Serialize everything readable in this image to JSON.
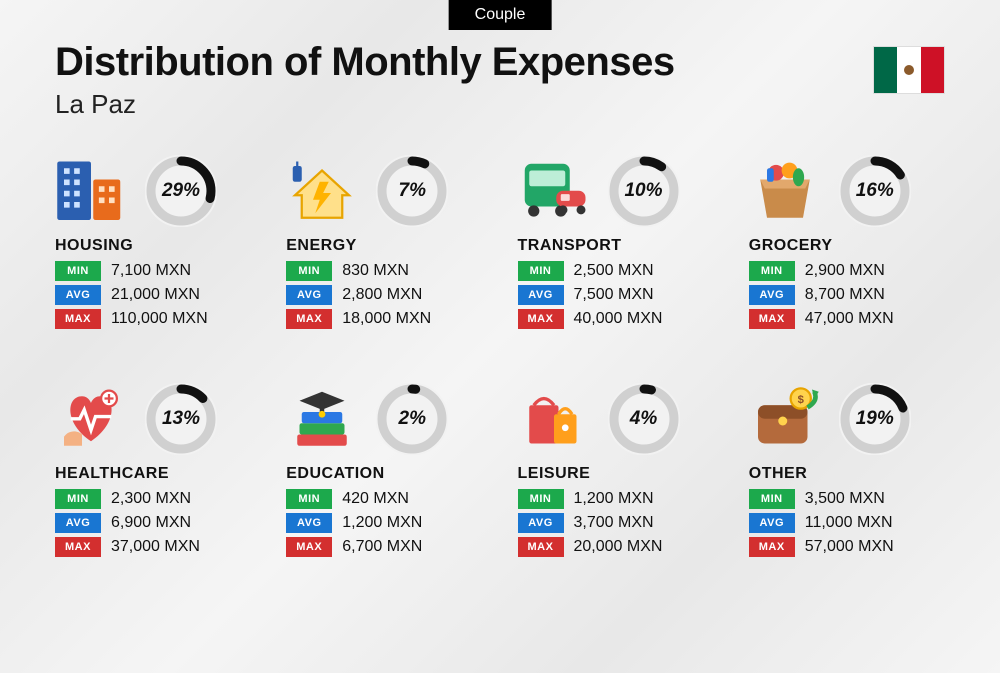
{
  "badge": "Couple",
  "title": "Distribution of Monthly Expenses",
  "subtitle": "La Paz",
  "flag": {
    "left": "#006847",
    "mid": "#ffffff",
    "right": "#ce1126"
  },
  "labels": {
    "min": "MIN",
    "avg": "AVG",
    "max": "MAX"
  },
  "donut": {
    "track_color": "#d0d0d0",
    "fill_color": "#111111",
    "bg": "#f2f2f2",
    "stroke_width": 9,
    "radius": 30
  },
  "currency_suffix": " MXN",
  "categories": [
    {
      "key": "housing",
      "name": "HOUSING",
      "pct": 29,
      "min": "7,100",
      "avg": "21,000",
      "max": "110,000"
    },
    {
      "key": "energy",
      "name": "ENERGY",
      "pct": 7,
      "min": "830",
      "avg": "2,800",
      "max": "18,000"
    },
    {
      "key": "transport",
      "name": "TRANSPORT",
      "pct": 10,
      "min": "2,500",
      "avg": "7,500",
      "max": "40,000"
    },
    {
      "key": "grocery",
      "name": "GROCERY",
      "pct": 16,
      "min": "2,900",
      "avg": "8,700",
      "max": "47,000"
    },
    {
      "key": "healthcare",
      "name": "HEALTHCARE",
      "pct": 13,
      "min": "2,300",
      "avg": "6,900",
      "max": "37,000"
    },
    {
      "key": "education",
      "name": "EDUCATION",
      "pct": 2,
      "min": "420",
      "avg": "1,200",
      "max": "6,700"
    },
    {
      "key": "leisure",
      "name": "LEISURE",
      "pct": 4,
      "min": "1,200",
      "avg": "3,700",
      "max": "20,000"
    },
    {
      "key": "other",
      "name": "OTHER",
      "pct": 19,
      "min": "3,500",
      "avg": "11,000",
      "max": "57,000"
    }
  ]
}
